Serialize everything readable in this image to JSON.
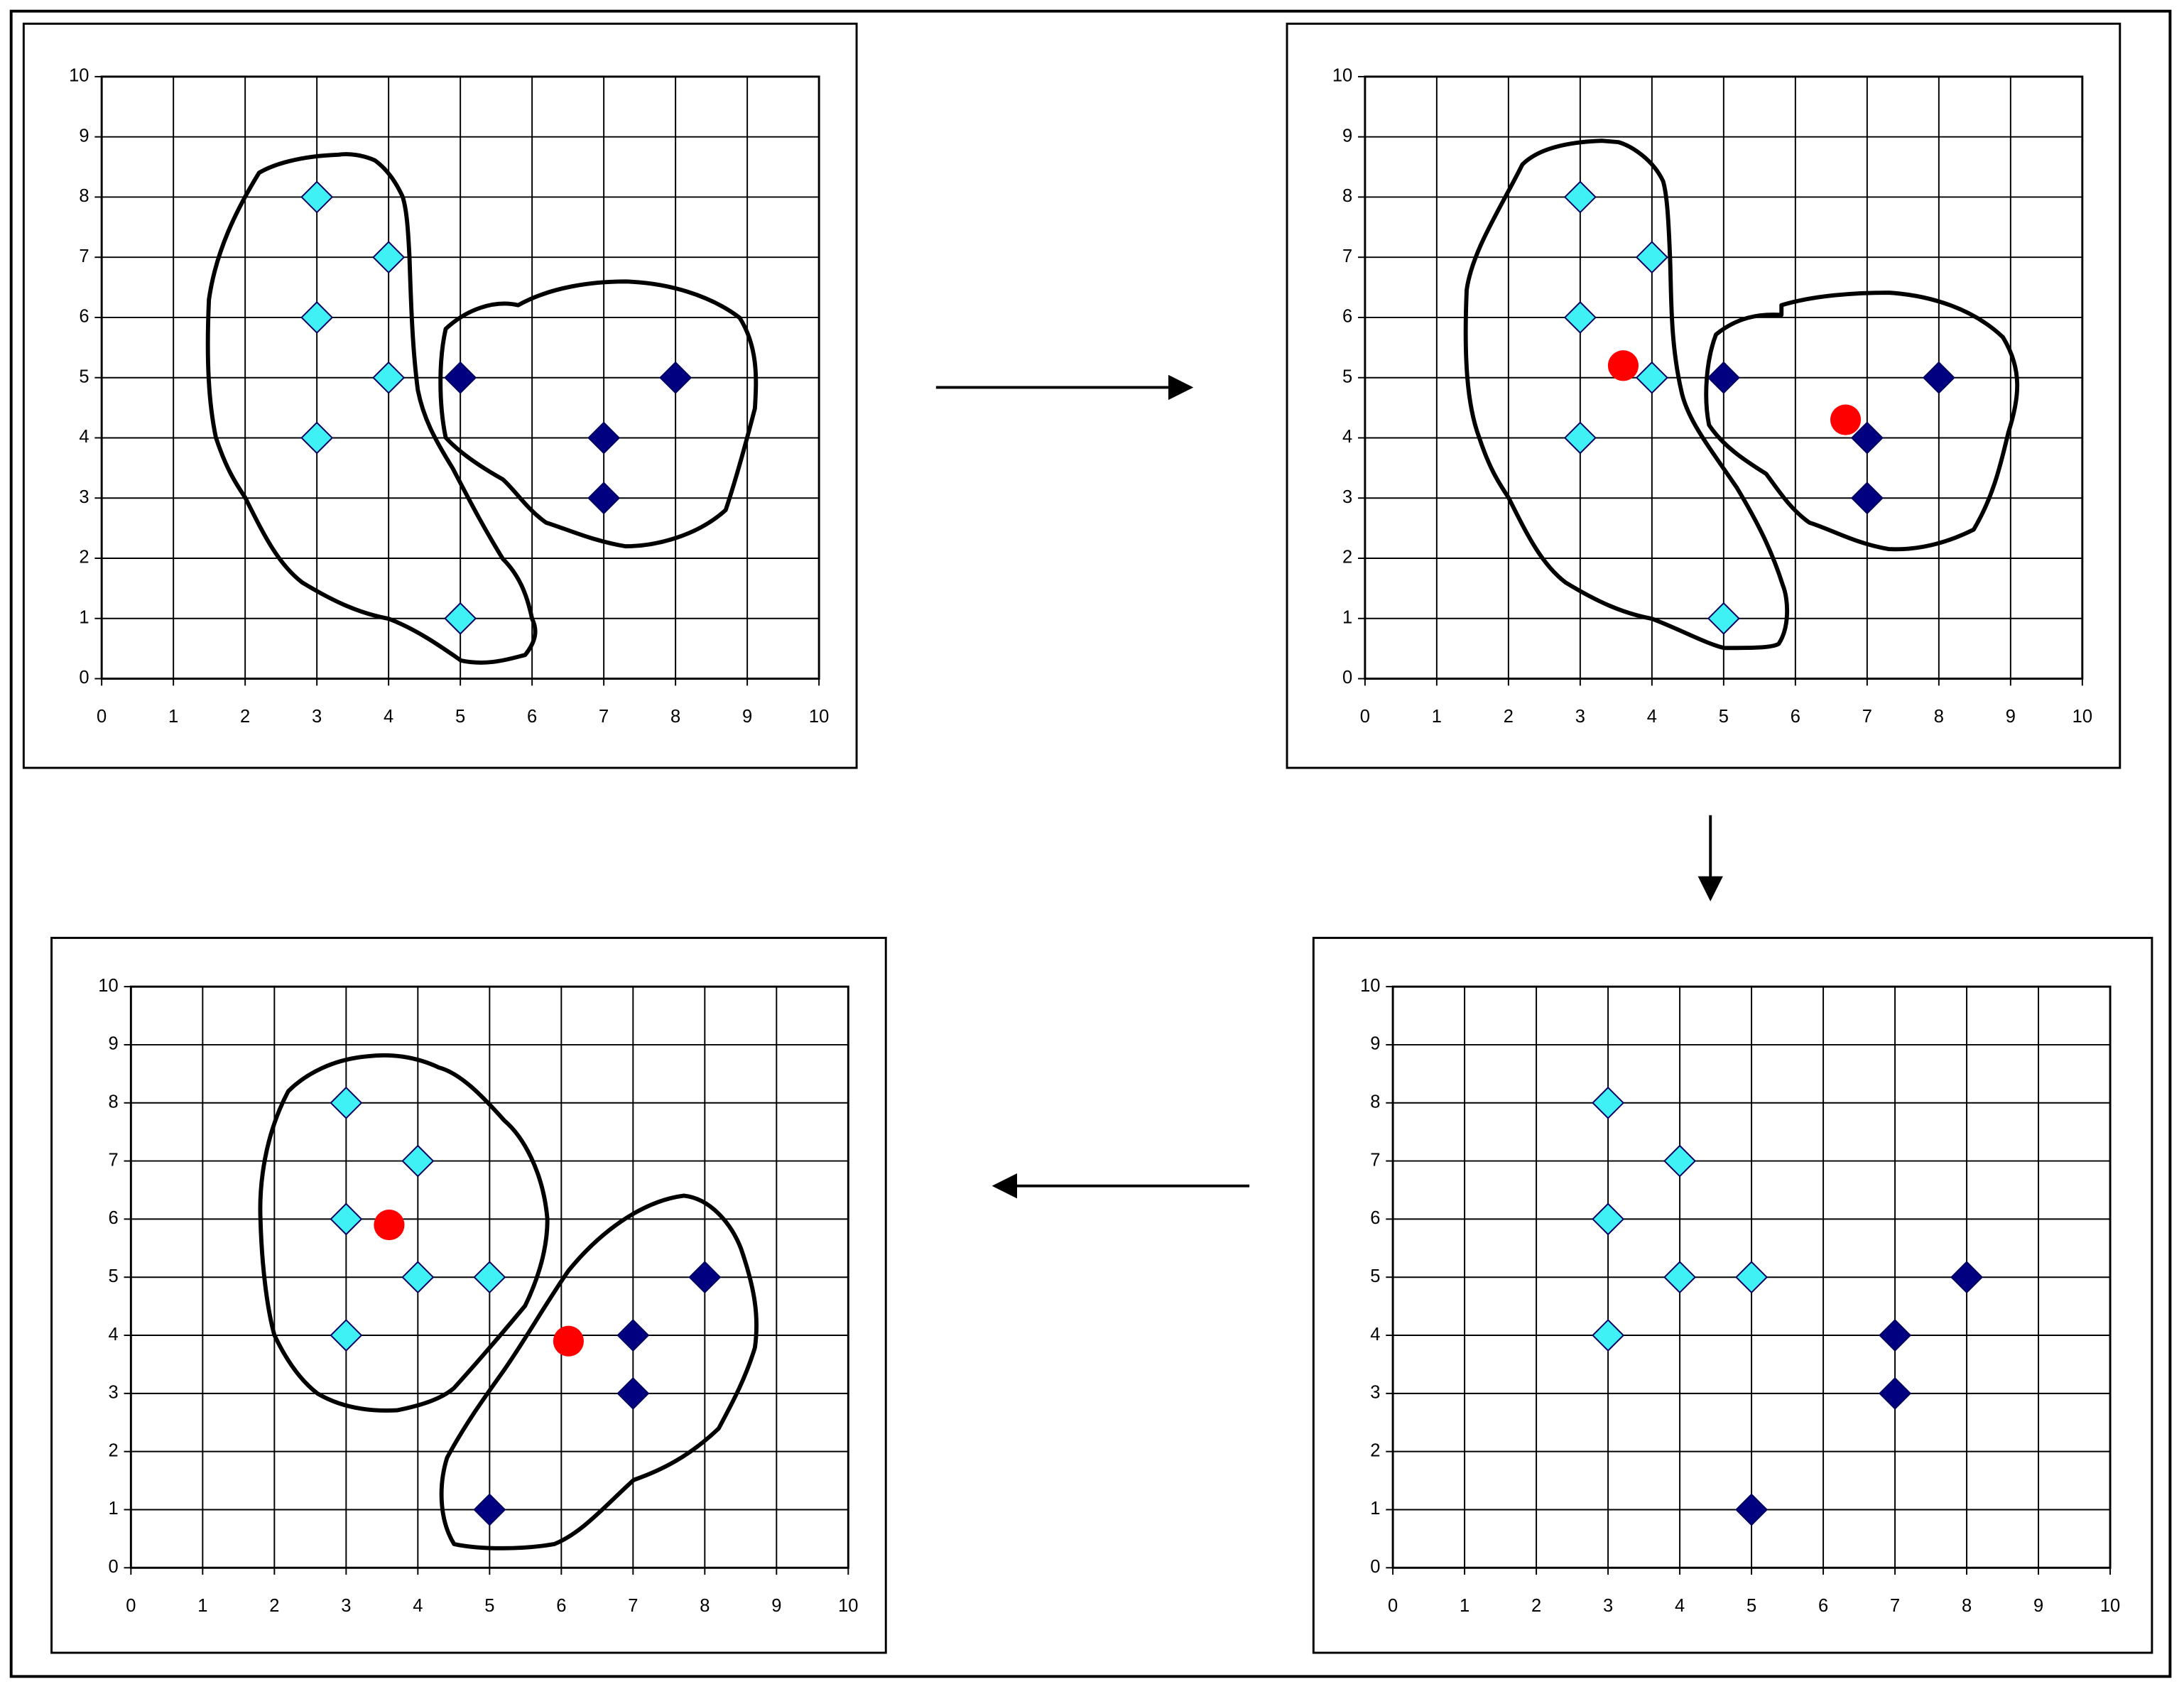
{
  "chart_data": [
    {
      "type": "scatter",
      "xlim": [
        0,
        10
      ],
      "ylim": [
        0,
        10
      ],
      "xticks": [
        0,
        1,
        2,
        3,
        4,
        5,
        6,
        7,
        8,
        9,
        10
      ],
      "yticks": [
        0,
        1,
        2,
        3,
        4,
        5,
        6,
        7,
        8,
        9,
        10
      ],
      "grid": true,
      "series": [
        {
          "color": "#3ff0f5",
          "marker": "diamond",
          "x": [
            3,
            4,
            3,
            4,
            3,
            5
          ],
          "values": [
            8,
            7,
            6,
            5,
            4,
            1
          ]
        },
        {
          "color": "#000080",
          "marker": "diamond",
          "x": [
            5,
            7,
            7,
            8
          ],
          "values": [
            5,
            4,
            3,
            5
          ]
        }
      ]
    },
    {
      "type": "scatter",
      "xlim": [
        0,
        10
      ],
      "ylim": [
        0,
        10
      ],
      "xticks": [
        0,
        1,
        2,
        3,
        4,
        5,
        6,
        7,
        8,
        9,
        10
      ],
      "yticks": [
        0,
        1,
        2,
        3,
        4,
        5,
        6,
        7,
        8,
        9,
        10
      ],
      "grid": true,
      "series": [
        {
          "color": "#3ff0f5",
          "marker": "diamond",
          "x": [
            3,
            4,
            3,
            4,
            3,
            5
          ],
          "values": [
            8,
            7,
            6,
            5,
            4,
            1
          ]
        },
        {
          "color": "#000080",
          "marker": "diamond",
          "x": [
            5,
            7,
            7,
            8
          ],
          "values": [
            5,
            4,
            3,
            5
          ]
        },
        {
          "color": "#ff0000",
          "marker": "circle",
          "x": [
            3.6,
            6.7
          ],
          "values": [
            5.2,
            4.3
          ]
        }
      ]
    },
    {
      "type": "scatter",
      "xlim": [
        0,
        10
      ],
      "ylim": [
        0,
        10
      ],
      "xticks": [
        0,
        1,
        2,
        3,
        4,
        5,
        6,
        7,
        8,
        9,
        10
      ],
      "yticks": [
        0,
        1,
        2,
        3,
        4,
        5,
        6,
        7,
        8,
        9,
        10
      ],
      "grid": true,
      "series": [
        {
          "color": "#3ff0f5",
          "marker": "diamond",
          "x": [
            3,
            4,
            3,
            4,
            5,
            3
          ],
          "values": [
            8,
            7,
            6,
            5,
            5,
            4
          ]
        },
        {
          "color": "#000080",
          "marker": "diamond",
          "x": [
            7,
            7,
            8,
            5
          ],
          "values": [
            4,
            3,
            5,
            1
          ]
        }
      ]
    },
    {
      "type": "scatter",
      "xlim": [
        0,
        10
      ],
      "ylim": [
        0,
        10
      ],
      "xticks": [
        0,
        1,
        2,
        3,
        4,
        5,
        6,
        7,
        8,
        9,
        10
      ],
      "yticks": [
        0,
        1,
        2,
        3,
        4,
        5,
        6,
        7,
        8,
        9,
        10
      ],
      "grid": true,
      "series": [
        {
          "color": "#3ff0f5",
          "marker": "diamond",
          "x": [
            3,
            4,
            3,
            4,
            5,
            3
          ],
          "values": [
            8,
            7,
            6,
            5,
            5,
            4
          ]
        },
        {
          "color": "#000080",
          "marker": "diamond",
          "x": [
            7,
            7,
            8,
            5
          ],
          "values": [
            4,
            3,
            5,
            1
          ]
        },
        {
          "color": "#ff0000",
          "marker": "circle",
          "x": [
            3.6,
            6.1
          ],
          "values": [
            5.9,
            3.9
          ]
        }
      ]
    }
  ]
}
